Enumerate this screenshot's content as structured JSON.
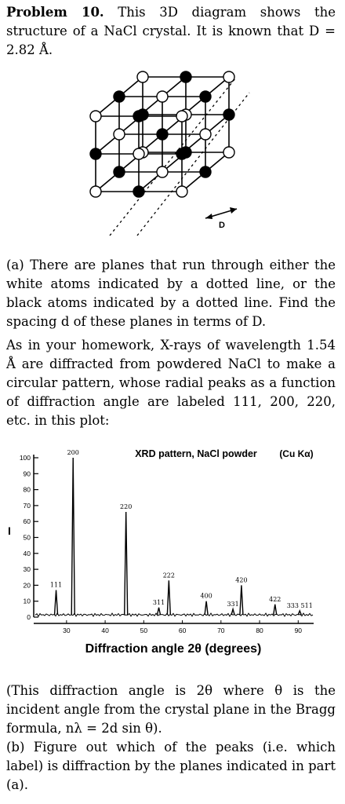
{
  "problem": {
    "heading": "Problem 10.",
    "intro": "This 3D diagram shows the structure of a NaCl crystal. It is known that D = 2.82 Å.",
    "diagram_label": "D",
    "part_a": "(a) There are planes that run through either the white atoms indicated by a dotted line, or the black atoms indicated by a dotted line. Find the spacing d of these planes in terms of D.",
    "setup": "As in your homework, X-rays of wavelength 1.54 Å are diffracted from powdered NaCl to make a circular pattern, whose radial peaks as a function of diffraction angle are labeled 111, 200, 220, etc. in this plot:",
    "note": "(This diffraction angle is 2θ where θ is the incident angle from the crystal plane in the Bragg formula, nλ = 2d sin θ).",
    "part_b": "(b) Figure out which of the peaks (i.e. which label) is diffraction by the planes indicated in part (a)."
  },
  "chart_data": {
    "type": "peaks",
    "title": "XRD pattern, NaCl powder",
    "annotation": "(Cu Kα)",
    "y_label": "I",
    "x_label": "Diffraction angle 2θ (degrees)",
    "categories": [
      "111",
      "200",
      "220",
      "311",
      "222",
      "400",
      "331",
      "420",
      "422",
      "333 511"
    ],
    "x": [
      27.3,
      31.7,
      45.4,
      53.9,
      56.5,
      66.2,
      73.1,
      75.3,
      84.0,
      90.4
    ],
    "values": [
      17,
      100,
      66,
      6,
      23,
      10,
      5,
      20,
      8,
      4
    ],
    "color": "#000000",
    "xlim": [
      21.5,
      94
    ],
    "ylim": [
      0,
      100
    ],
    "xticks": [
      30,
      40,
      50,
      60,
      70,
      80,
      90
    ],
    "yticks": [
      0,
      10,
      20,
      30,
      40,
      50,
      60,
      70,
      80,
      90,
      100
    ]
  }
}
